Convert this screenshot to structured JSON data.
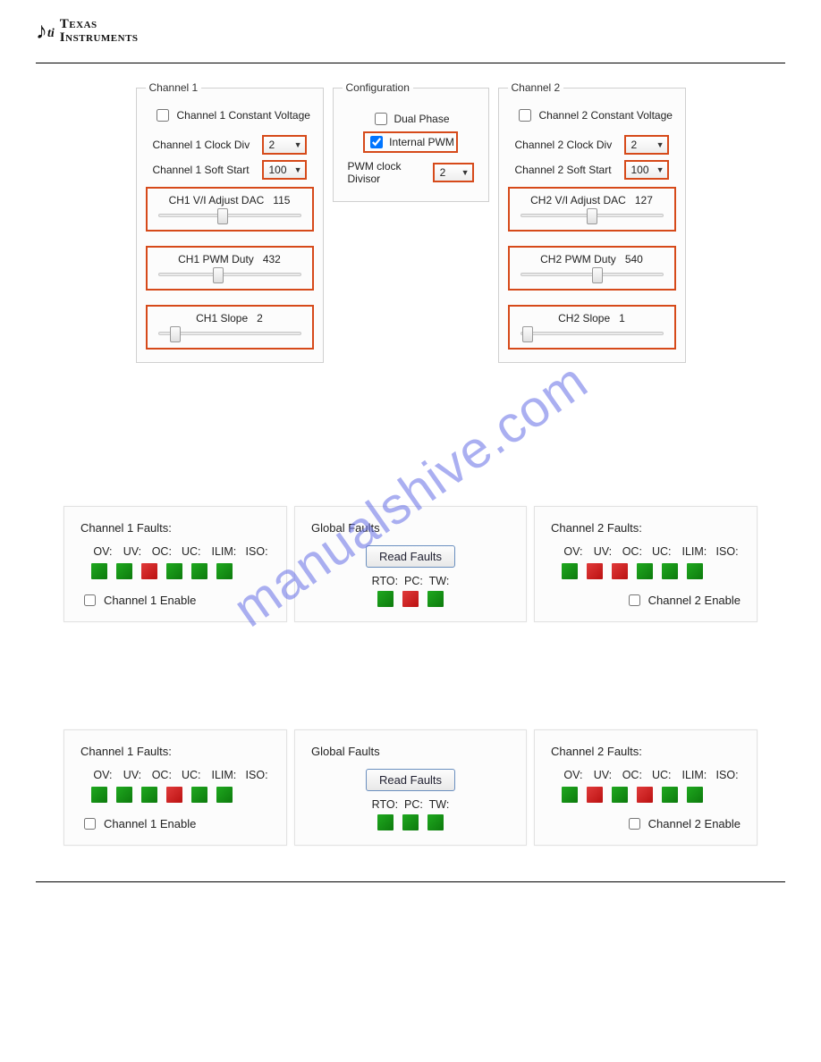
{
  "logo": {
    "glyph": "ti",
    "line1": "Texas",
    "line2": "Instruments"
  },
  "watermark": "manualshive.com",
  "colors": {
    "highlight_border": "#d64a1a",
    "led_green": "#159215",
    "led_red": "#d22",
    "button_border": "#6a8fbf"
  },
  "channels": {
    "ch1": {
      "legend": "Channel 1",
      "constant_voltage_label": "Channel 1 Constant Voltage",
      "constant_voltage_checked": false,
      "clock_div_label": "Channel 1 Clock Div",
      "clock_div_value": "2",
      "soft_start_label": "Channel 1 Soft Start",
      "soft_start_value": "100",
      "dac": {
        "label": "CH1 V/I Adjust DAC",
        "value": 115,
        "pos_pct": 45
      },
      "pwm": {
        "label": "CH1 PWM Duty",
        "value": 432,
        "pos_pct": 42
      },
      "slope": {
        "label": "CH1 Slope",
        "value": 2,
        "pos_pct": 12
      }
    },
    "ch2": {
      "legend": "Channel 2",
      "constant_voltage_label": "Channel 2 Constant Voltage",
      "constant_voltage_checked": false,
      "clock_div_label": "Channel 2 Clock Div",
      "clock_div_value": "2",
      "soft_start_label": "Channel 2 Soft Start",
      "soft_start_value": "100",
      "dac": {
        "label": "CH2 V/I Adjust DAC",
        "value": 127,
        "pos_pct": 50
      },
      "pwm": {
        "label": "CH2 PWM Duty",
        "value": 540,
        "pos_pct": 54
      },
      "slope": {
        "label": "CH2 Slope",
        "value": 1,
        "pos_pct": 5
      }
    }
  },
  "configuration": {
    "legend": "Configuration",
    "dual_phase_label": "Dual Phase",
    "dual_phase_checked": false,
    "internal_pwm_label": "Internal PWM",
    "internal_pwm_checked": true,
    "pwm_divisor_label": "PWM clock Divisor",
    "pwm_divisor_value": "2"
  },
  "fault_labels": [
    "OV:",
    "UV:",
    "OC:",
    "UC:",
    "ILIM:",
    "ISO:"
  ],
  "global_fault_labels": [
    "RTO:",
    "PC:",
    "TW:"
  ],
  "faults_set_a": {
    "ch1": {
      "title": "Channel 1 Faults:",
      "leds": [
        "green",
        "green",
        "red",
        "green",
        "green",
        "green"
      ],
      "enable_label": "Channel 1 Enable",
      "enable_checked": false
    },
    "global": {
      "title": "Global Faults",
      "button": "Read Faults",
      "leds": [
        "green",
        "red",
        "green"
      ]
    },
    "ch2": {
      "title": "Channel 2 Faults:",
      "leds": [
        "green",
        "red",
        "red",
        "green",
        "green",
        "green"
      ],
      "enable_label": "Channel 2 Enable",
      "enable_checked": false
    }
  },
  "faults_set_b": {
    "ch1": {
      "title": "Channel 1 Faults:",
      "leds": [
        "green",
        "green",
        "green",
        "red",
        "green",
        "green"
      ],
      "enable_label": "Channel 1 Enable",
      "enable_checked": false
    },
    "global": {
      "title": "Global Faults",
      "button": "Read Faults",
      "leds": [
        "green",
        "green",
        "green"
      ]
    },
    "ch2": {
      "title": "Channel 2 Faults:",
      "leds": [
        "green",
        "red",
        "green",
        "red",
        "green",
        "green"
      ],
      "enable_label": "Channel 2 Enable",
      "enable_checked": false
    }
  }
}
